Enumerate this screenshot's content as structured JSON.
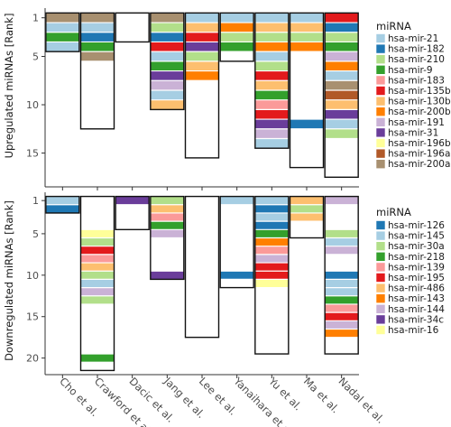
{
  "chart_data": {
    "type": "bar",
    "studies": [
      "Cho et al.",
      "Crawford et al.",
      "Dacic et al.",
      "Jang et al.",
      "Lee et al.",
      "Yanaihara et al.",
      "Yu et al.",
      "Ma et al.",
      "Nadal et al."
    ],
    "panels": [
      {
        "id": "upregulated",
        "ylabel": "Upregulated miRNAs [Rank]",
        "ylim": [
          0,
          18.5
        ],
        "yticks": [
          1,
          5,
          10,
          15
        ],
        "legend_title": "miRNA",
        "legend": [
          {
            "name": "hsa-mir-21",
            "color": "#a6cee3"
          },
          {
            "name": "hsa-mir-182",
            "color": "#1f78b4"
          },
          {
            "name": "hsa-mir-210",
            "color": "#b2df8a"
          },
          {
            "name": "hsa-mir-9",
            "color": "#33a02c"
          },
          {
            "name": "hsa-mir-183",
            "color": "#fb9a99"
          },
          {
            "name": "hsa-mir-135b",
            "color": "#e31a1c"
          },
          {
            "name": "hsa-mir-130b",
            "color": "#fdbf6f"
          },
          {
            "name": "hsa-mir-200b",
            "color": "#ff7f00"
          },
          {
            "name": "hsa-mir-191",
            "color": "#cab2d6"
          },
          {
            "name": "hsa-mir-31",
            "color": "#6a3d9a"
          },
          {
            "name": "hsa-mir-196b",
            "color": "#ffff99"
          },
          {
            "name": "hsa-mir-196a",
            "color": "#b15928"
          },
          {
            "name": "hsa-mir-200a",
            "color": "#a89070"
          }
        ],
        "bars": [
          {
            "study": "Cho et al.",
            "length": 4,
            "ranks": {
              "1": "#a89070",
              "2": "#a6cee3",
              "3": "#33a02c",
              "4": "#a6cee3"
            }
          },
          {
            "study": "Crawford et al.",
            "length": 12,
            "ranks": {
              "1": "#a89070",
              "2": "#a6cee3",
              "3": "#1f78b4",
              "4": "#33a02c",
              "5": "#a89070"
            }
          },
          {
            "study": "Dacic et al.",
            "length": 3,
            "ranks": {}
          },
          {
            "study": "Jang et al.",
            "length": 10,
            "ranks": {
              "1": "#a89070",
              "2": "#b2df8a",
              "3": "#1f78b4",
              "4": "#e31a1c",
              "5": "#a6cee3",
              "6": "#33a02c",
              "7": "#6a3d9a",
              "8": "#cab2d6",
              "9": "#a6cee3",
              "10": "#fdbf6f"
            }
          },
          {
            "study": "Lee et al.",
            "length": 15,
            "ranks": {
              "1": "#a6cee3",
              "2": "#fdbf6f",
              "3": "#e31a1c",
              "4": "#6a3d9a",
              "5": "#b2df8a",
              "6": "#fdbf6f",
              "7": "#ff7f00"
            }
          },
          {
            "study": "Yanaihara et al.",
            "length": 5,
            "ranks": {
              "1": "#a6cee3",
              "2": "#ff7f00",
              "3": "#b2df8a",
              "4": "#33a02c"
            }
          },
          {
            "study": "Yu et al.",
            "length": 14,
            "ranks": {
              "1": "#a6cee3",
              "2": "#fdbf6f",
              "3": "#b2df8a",
              "4": "#ff7f00",
              "5": "#a6cee3",
              "6": "#b2df8a",
              "7": "#e31a1c",
              "8": "#fdbf6f",
              "9": "#33a02c",
              "10": "#fb9a99",
              "11": "#e31a1c",
              "12": "#6a3d9a",
              "13": "#cab2d6",
              "14": "#a6cee3"
            }
          },
          {
            "study": "Ma et al.",
            "length": 16,
            "ranks": {
              "1": "#a6cee3",
              "2": "#fdbf6f",
              "3": "#b2df8a",
              "4": "#ff7f00",
              "12": "#1f78b4"
            }
          },
          {
            "study": "Nadal et al.",
            "length": 17,
            "ranks": {
              "1": "#e31a1c",
              "2": "#1f78b4",
              "3": "#b2df8a",
              "4": "#33a02c",
              "5": "#cab2d6",
              "6": "#ff7f00",
              "7": "#a6cee3",
              "8": "#a89070",
              "9": "#b15928",
              "10": "#fdbf6f",
              "11": "#6a3d9a",
              "12": "#a6cee3",
              "13": "#b2df8a"
            }
          }
        ]
      },
      {
        "id": "downregulated",
        "ylabel": "Downregulated miRNAs [Rank]",
        "ylim": [
          0,
          22
        ],
        "yticks": [
          1,
          5,
          10,
          15,
          20
        ],
        "legend_title": "miRNA",
        "legend": [
          {
            "name": "hsa-mir-126",
            "color": "#1f78b4"
          },
          {
            "name": "hsa-mir-145",
            "color": "#a6cee3"
          },
          {
            "name": "hsa-mir-30a",
            "color": "#b2df8a"
          },
          {
            "name": "hsa-mir-218",
            "color": "#33a02c"
          },
          {
            "name": "hsa-mir-139",
            "color": "#fb9a99"
          },
          {
            "name": "hsa-mir-195",
            "color": "#e31a1c"
          },
          {
            "name": "hsa-mir-486",
            "color": "#fdbf6f"
          },
          {
            "name": "hsa-mir-143",
            "color": "#ff7f00"
          },
          {
            "name": "hsa-mir-144",
            "color": "#cab2d6"
          },
          {
            "name": "hsa-mir-34c",
            "color": "#6a3d9a"
          },
          {
            "name": "hsa-mir-16",
            "color": "#ffff99"
          }
        ],
        "bars": [
          {
            "study": "Cho et al.",
            "length": 2,
            "ranks": {
              "1": "#a6cee3",
              "2": "#1f78b4"
            }
          },
          {
            "study": "Crawford et al.",
            "length": 21,
            "ranks": {
              "5": "#ffff99",
              "6": "#b2df8a",
              "7": "#e31a1c",
              "8": "#fb9a99",
              "9": "#fdbf6f",
              "10": "#b2df8a",
              "11": "#a6cee3",
              "12": "#cab2d6",
              "13": "#b2df8a",
              "20": "#33a02c"
            }
          },
          {
            "study": "Dacic et al.",
            "length": 4,
            "ranks": {
              "1": "#6a3d9a"
            }
          },
          {
            "study": "Jang et al.",
            "length": 10,
            "ranks": {
              "1": "#b2df8a",
              "2": "#fdbf6f",
              "3": "#fb9a99",
              "4": "#33a02c",
              "5": "#cab2d6",
              "10": "#6a3d9a"
            }
          },
          {
            "study": "Lee et al.",
            "length": 17,
            "ranks": {}
          },
          {
            "study": "Yanaihara et al.",
            "length": 11,
            "ranks": {
              "1": "#a6cee3",
              "10": "#1f78b4"
            }
          },
          {
            "study": "Yu et al.",
            "length": 19,
            "ranks": {
              "1": "#a6cee3",
              "2": "#1f78b4",
              "3": "#a6cee3",
              "4": "#1f78b4",
              "5": "#33a02c",
              "6": "#ff7f00",
              "7": "#fb9a99",
              "8": "#cab2d6",
              "9": "#e31a1c",
              "10": "#e31a1c",
              "11": "#ffff99"
            }
          },
          {
            "study": "Ma et al.",
            "length": 5,
            "ranks": {
              "1": "#fdbf6f",
              "2": "#b2df8a",
              "3": "#fdbf6f"
            }
          },
          {
            "study": "Nadal et al.",
            "length": 19,
            "ranks": {
              "1": "#cab2d6",
              "5": "#b2df8a",
              "6": "#a6cee3",
              "7": "#cab2d6",
              "10": "#1f78b4",
              "11": "#a6cee3",
              "12": "#a6cee3",
              "13": "#33a02c",
              "14": "#fb9a99",
              "15": "#e31a1c",
              "16": "#cab2d6",
              "17": "#ff7f00"
            }
          }
        ]
      }
    ]
  }
}
